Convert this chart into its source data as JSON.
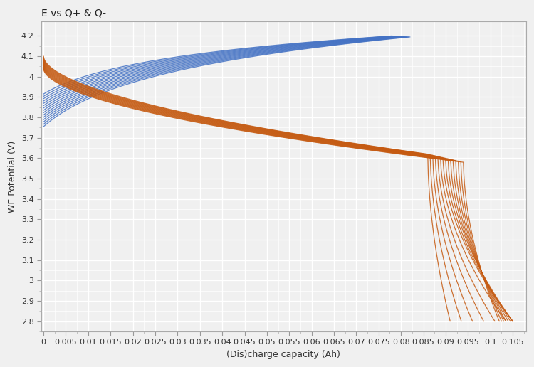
{
  "title": "E vs Q+ & Q-",
  "xlabel": "(Dis)charge capacity (Ah)",
  "ylabel": "WE.Potential (V)",
  "xlim": [
    -0.0005,
    0.108
  ],
  "ylim": [
    2.75,
    4.27
  ],
  "yticks": [
    2.8,
    2.9,
    3.0,
    3.1,
    3.2,
    3.3,
    3.4,
    3.5,
    3.6,
    3.7,
    3.8,
    3.9,
    4.0,
    4.1,
    4.2
  ],
  "xticks": [
    0,
    0.005,
    0.01,
    0.015,
    0.02,
    0.025,
    0.03,
    0.035,
    0.04,
    0.045,
    0.05,
    0.055,
    0.06,
    0.065,
    0.07,
    0.075,
    0.08,
    0.085,
    0.09,
    0.095,
    0.1,
    0.105
  ],
  "charge_color": "#4472C4",
  "discharge_color": "#C55A11",
  "n_cycles": 15,
  "background_color": "#f0f0f0",
  "grid_color": "#ffffff",
  "title_fontsize": 10,
  "label_fontsize": 9,
  "tick_fontsize": 8,
  "linewidth": 0.9
}
